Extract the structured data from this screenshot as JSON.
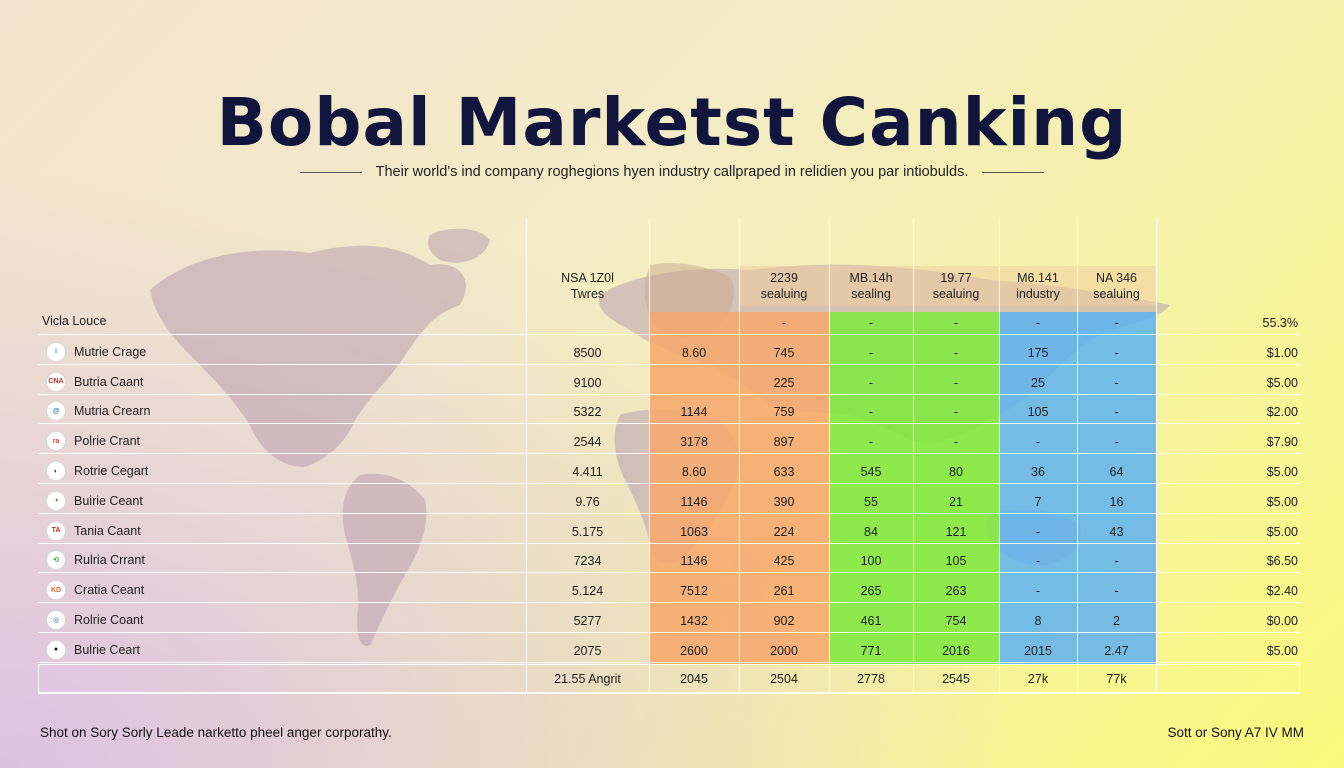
{
  "title": "Bobal Marketst Canking",
  "subtitle": "Their world's ind company roghegions hyen industry callpraped in relidien you par intiobulds.",
  "table": {
    "first_label": "Vicla Louce",
    "headers": [
      {
        "line1": "NSA 1Z0l",
        "line2": "Twres"
      },
      {
        "line1": "",
        "line2": ""
      },
      {
        "line1": "2239",
        "line2": "sealuing"
      },
      {
        "line1": "MB.14h",
        "line2": "sealing"
      },
      {
        "line1": "19.77",
        "line2": "sealuing"
      },
      {
        "line1": "M6.141",
        "line2": "industry"
      },
      {
        "line1": "NA 346",
        "line2": "sealuing"
      }
    ],
    "first_row": [
      "",
      "",
      "-",
      "-",
      "-",
      "-",
      "-",
      "55.3%"
    ],
    "rows": [
      {
        "name": "Mutrie Crage",
        "logo": "i",
        "logo_color": "#3aa0d8",
        "values": [
          "8500",
          "8.60",
          "745",
          "-",
          "-",
          "175",
          "-",
          "$1.00"
        ]
      },
      {
        "name": "Butria Caant",
        "logo": "CNA",
        "logo_color": "#c0302c",
        "values": [
          "9100",
          "",
          "225",
          "-",
          "-",
          "25",
          "-",
          "$5.00"
        ]
      },
      {
        "name": "Mutria Crearn",
        "logo": "@",
        "logo_color": "#2a7fc0",
        "values": [
          "5322",
          "1144",
          "759",
          "-",
          "-",
          "105",
          "-",
          "$2.00"
        ]
      },
      {
        "name": "Polrie Crant",
        "logo": "ra",
        "logo_color": "#d0453a",
        "values": [
          "2544",
          "3178",
          "897",
          "-",
          "-",
          "-",
          "-",
          "$7.90"
        ]
      },
      {
        "name": "Rotrie Cegart",
        "logo": "◐",
        "logo_color": "#1f3d7a",
        "values": [
          "4.411",
          "8.60",
          "633",
          "545",
          "80",
          "36",
          "64",
          "$5.00"
        ]
      },
      {
        "name": "Buirie Ceant",
        "logo": "◑",
        "logo_color": "#d4422c",
        "values": [
          "9.76",
          "1146",
          "390",
          "55",
          "21",
          "7",
          "16",
          "$5.00"
        ]
      },
      {
        "name": "Tania Caant",
        "logo": "TA",
        "logo_color": "#c02c2c",
        "values": [
          "5.175",
          "1063",
          "224",
          "84",
          "121",
          "-",
          "43",
          "$5.00"
        ]
      },
      {
        "name": "Rulria Crrant",
        "logo": "⟲",
        "logo_color": "#2a9a3a",
        "values": [
          "7234",
          "1146",
          "425",
          "100",
          "105",
          "-",
          "-",
          "$6.50"
        ]
      },
      {
        "name": "Cratia Ceant",
        "logo": "KD",
        "logo_color": "#d46a2c",
        "values": [
          "5.124",
          "7512",
          "261",
          "265",
          "263",
          "-",
          "-",
          "$2.40"
        ]
      },
      {
        "name": "Rolrie Coant",
        "logo": "◎",
        "logo_color": "#1f4fa0",
        "values": [
          "5277",
          "1432",
          "902",
          "461",
          "754",
          "8",
          "2",
          "$0.00"
        ]
      },
      {
        "name": "Bulrie Ceart",
        "logo": "●",
        "logo_color": "#111111",
        "values": [
          "2075",
          "2600",
          "2000",
          "771",
          "2016",
          "2015",
          "2.47",
          "$5.00"
        ]
      }
    ],
    "summary": [
      "21.55 Angrit",
      "2045",
      "2504",
      "2778",
      "2545",
      "27k",
      "77k"
    ]
  },
  "footer_left": "Shot on Sory Sorly Leade narketto pheel anger corporathy.",
  "footer_right": "Sott or Sony A7 IV MM",
  "colors": {
    "orange": "#f6a86e",
    "green": "#7fe83f",
    "blue": "#62b3ef",
    "title": "#11143c"
  }
}
